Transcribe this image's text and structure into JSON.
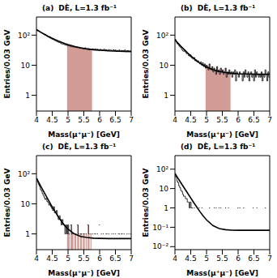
{
  "chart_data": [
    {
      "type": "histogram",
      "title": "(a)",
      "annotation": "DÈ, L=1.3 fb⁻¹",
      "x_label": "Mass(μ⁺μ⁻) [GeV]",
      "y_label": "Entries/0.03 GeV",
      "log": "y",
      "color": "#000000",
      "xlim": [
        4,
        7
      ],
      "xticks": [
        4,
        4.5,
        5,
        5.5,
        6,
        6.5,
        7
      ],
      "ylim": [
        0.3,
        400
      ],
      "yticks": [
        1,
        10,
        {
          "value": 100,
          "label": "10²"
        }
      ],
      "bins": [
        4,
        4.03,
        4.06,
        4.09,
        4.12,
        4.15,
        4.18,
        4.21,
        4.24,
        4.27,
        4.3,
        4.33,
        4.36,
        4.39,
        4.42,
        4.45,
        4.48,
        4.51,
        4.54,
        4.57,
        4.6,
        4.63,
        4.66,
        4.69,
        4.72,
        4.75,
        4.78,
        4.81,
        4.84,
        4.87,
        4.9,
        4.93,
        4.96,
        4.99,
        5.02,
        5.05,
        5.08,
        5.11,
        5.14,
        5.17,
        5.2,
        5.23,
        5.26,
        5.29,
        5.32,
        5.35,
        5.38,
        5.41,
        5.44,
        5.47,
        5.5,
        5.53,
        5.56,
        5.59,
        5.62,
        5.65,
        5.68,
        5.71,
        5.74,
        5.77,
        5.8,
        5.83,
        5.86,
        5.89,
        5.92,
        5.95,
        5.98,
        6.01,
        6.04,
        6.07,
        6.1,
        6.13,
        6.16,
        6.19,
        6.22,
        6.25,
        6.28,
        6.31,
        6.34,
        6.37,
        6.4,
        6.43,
        6.46,
        6.49,
        6.52,
        6.55,
        6.58,
        6.61,
        6.64,
        6.67,
        6.7,
        6.73,
        6.76,
        6.79,
        6.82,
        6.85,
        6.88,
        6.91,
        6.94,
        6.97,
        7
      ],
      "counts": [
        152,
        140,
        138,
        130,
        126,
        118,
        115,
        108,
        104,
        99,
        96,
        90,
        88,
        84,
        80,
        79,
        74,
        72,
        70,
        66,
        65,
        62,
        60,
        58,
        57,
        55,
        52,
        51,
        50,
        49,
        47,
        48,
        45,
        44,
        46,
        43,
        42,
        41,
        44,
        40,
        41,
        39,
        40,
        38,
        39,
        37,
        38,
        36,
        37,
        35,
        36,
        38,
        35,
        34,
        36,
        33,
        35,
        34,
        33,
        35,
        34,
        33,
        35,
        32,
        34,
        33,
        31,
        34,
        32,
        33,
        32,
        34,
        31,
        33,
        32,
        30,
        33,
        31,
        32,
        30,
        31,
        33,
        30,
        32,
        29,
        31,
        30,
        32,
        29,
        31,
        30,
        31,
        29,
        32,
        28,
        30,
        31,
        29,
        30,
        29
      ],
      "fit": {
        "x": [
          4,
          4.1,
          4.2,
          4.3,
          4.4,
          4.5,
          4.6,
          4.7,
          4.8,
          4.9,
          5,
          5.2,
          5.4,
          5.6,
          5.8,
          6,
          6.3,
          6.6,
          7
        ],
        "values": [
          153,
          132,
          115,
          100.5,
          88.4,
          78.4,
          70,
          63,
          57.2,
          52.3,
          48.3,
          42.1,
          37.8,
          34.8,
          32.7,
          31.3,
          29.9,
          29.1,
          28.5
        ]
      },
      "signal_window": [
        4.97,
        5.76
      ],
      "window_color": "#c98b84"
    },
    {
      "type": "histogram",
      "title": "(b)",
      "annotation": "DÈ, L=1.3 fb⁻¹",
      "x_label": "Mass(μ⁺μ⁻) [GeV]",
      "y_label": "Entries/0.03 GeV",
      "log": "y",
      "color": "#000000",
      "xlim": [
        4,
        7
      ],
      "xticks": [
        4,
        4.5,
        5,
        5.5,
        6,
        6.5,
        7
      ],
      "ylim": [
        0.3,
        400
      ],
      "yticks": [
        1,
        10,
        {
          "value": 100,
          "label": "10²"
        }
      ],
      "bins": [
        4,
        4.03,
        4.06,
        4.09,
        4.12,
        4.15,
        4.18,
        4.21,
        4.24,
        4.27,
        4.3,
        4.33,
        4.36,
        4.39,
        4.42,
        4.45,
        4.48,
        4.51,
        4.54,
        4.57,
        4.6,
        4.63,
        4.66,
        4.69,
        4.72,
        4.75,
        4.78,
        4.81,
        4.84,
        4.87,
        4.9,
        4.93,
        4.96,
        4.99,
        5.02,
        5.05,
        5.08,
        5.11,
        5.14,
        5.17,
        5.2,
        5.23,
        5.26,
        5.29,
        5.32,
        5.35,
        5.38,
        5.41,
        5.44,
        5.47,
        5.5,
        5.53,
        5.56,
        5.59,
        5.62,
        5.65,
        5.68,
        5.71,
        5.74,
        5.77,
        5.8,
        5.83,
        5.86,
        5.89,
        5.92,
        5.95,
        5.98,
        6.01,
        6.04,
        6.07,
        6.1,
        6.13,
        6.16,
        6.19,
        6.22,
        6.25,
        6.28,
        6.31,
        6.34,
        6.37,
        6.4,
        6.43,
        6.46,
        6.49,
        6.52,
        6.55,
        6.58,
        6.61,
        6.64,
        6.67,
        6.7,
        6.73,
        6.76,
        6.79,
        6.82,
        6.85,
        6.88,
        6.91,
        6.94,
        6.97,
        7
      ],
      "counts": [
        72,
        60,
        52,
        50,
        44,
        40,
        38,
        33,
        30,
        29,
        31,
        27,
        24,
        25,
        21,
        20,
        22,
        18,
        17,
        16,
        18,
        14,
        15,
        13,
        14,
        12,
        11,
        13,
        10,
        12,
        9,
        11,
        8,
        10,
        9,
        7,
        11,
        8,
        7,
        9,
        6,
        8,
        7,
        5,
        9,
        6,
        7,
        5,
        8,
        6,
        7,
        5,
        6,
        8,
        4,
        6,
        5,
        7,
        5,
        6,
        4,
        6,
        5,
        7,
        3,
        6,
        5,
        4,
        6,
        5,
        5,
        3,
        6,
        4,
        7,
        5,
        4,
        6,
        3,
        5,
        6,
        4,
        5,
        3,
        7,
        4,
        6,
        5,
        4,
        5,
        4,
        6,
        3,
        5,
        4,
        7,
        5,
        3,
        6,
        4
      ],
      "fit": {
        "x": [
          4,
          4.1,
          4.2,
          4.3,
          4.4,
          4.5,
          4.6,
          4.7,
          4.8,
          4.9,
          5,
          5.2,
          5.4,
          5.6,
          5.8,
          6,
          6.3,
          6.6,
          7
        ],
        "values": [
          70,
          53.8,
          41.7,
          32.6,
          25.7,
          20.6,
          16.7,
          13.8,
          11.6,
          10,
          8.7,
          7.1,
          6.2,
          5.7,
          5.4,
          5.2,
          5.1,
          5,
          5
        ]
      },
      "signal_window": [
        4.97,
        5.76
      ],
      "window_color": "#c98b84"
    },
    {
      "type": "histogram",
      "title": "(c)",
      "annotation": "DÈ, L=1.3 fb⁻¹",
      "x_label": "Mass(μ⁺μ⁻) [GeV]",
      "y_label": "Entries/0.03 GeV",
      "log": "y",
      "color": "#000000",
      "xlim": [
        4,
        7
      ],
      "xticks": [
        4,
        4.5,
        5,
        5.5,
        6,
        6.5,
        7
      ],
      "ylim": [
        0.3,
        400
      ],
      "yticks": [
        1,
        10,
        {
          "value": 100,
          "label": "10²"
        }
      ],
      "bins": [
        4,
        4.03,
        4.06,
        4.09,
        4.12,
        4.15,
        4.18,
        4.21,
        4.24,
        4.27,
        4.3,
        4.33,
        4.36,
        4.39,
        4.42,
        4.45,
        4.48,
        4.51,
        4.54,
        4.57,
        4.6,
        4.63,
        4.66,
        4.69,
        4.72,
        4.75,
        4.78,
        4.81,
        4.84,
        4.87,
        4.9,
        4.93,
        4.96,
        4.99,
        5.02,
        5.05,
        5.08,
        5.11,
        5.14,
        5.17,
        5.2,
        5.23,
        5.26,
        5.29,
        5.32,
        5.35,
        5.38,
        5.41,
        5.44,
        5.47,
        5.5,
        5.53,
        5.56,
        5.59,
        5.62,
        5.65,
        5.68,
        5.71,
        5.74,
        5.77,
        5.8,
        5.83,
        5.86,
        5.89,
        5.92,
        5.95,
        5.98,
        6.01,
        6.04,
        6.07,
        6.1,
        6.13,
        6.16,
        6.19,
        6.22,
        6.25,
        6.28,
        6.31,
        6.34,
        6.37,
        6.4,
        6.43,
        6.46,
        6.49,
        6.52,
        6.55,
        6.58,
        6.61,
        6.64,
        6.67,
        6.7,
        6.73,
        6.76,
        6.79,
        6.82,
        6.85,
        6.88,
        6.91,
        6.94,
        6.97,
        7
      ],
      "counts": [
        68,
        52,
        44,
        38,
        30,
        27,
        22,
        19,
        16,
        14,
        15,
        12,
        11,
        9,
        10,
        8,
        7,
        6,
        8,
        5,
        5,
        6,
        4,
        3,
        4,
        3,
        2,
        3,
        2,
        2,
        1,
        2,
        1,
        2,
        1,
        0,
        2,
        1,
        1,
        0,
        1,
        1,
        0,
        2,
        1,
        0,
        1,
        1,
        0,
        1,
        1,
        0,
        1,
        0,
        2,
        1,
        0,
        1,
        0,
        1,
        0,
        1,
        1,
        0,
        1,
        0,
        2,
        0,
        1,
        0,
        1,
        0,
        0,
        1,
        1,
        0,
        1,
        0,
        0,
        1,
        0,
        1,
        0,
        1,
        0,
        0,
        1,
        1,
        0,
        1,
        1,
        0,
        1,
        0,
        0,
        1,
        0,
        1,
        0,
        1
      ],
      "fit": {
        "x": [
          4,
          4.1,
          4.2,
          4.3,
          4.4,
          4.5,
          4.6,
          4.7,
          4.8,
          4.9,
          5,
          5.2,
          5.4,
          5.6,
          5.8,
          6,
          6.3,
          6.6,
          7
        ],
        "values": [
          70.7,
          45.1,
          28.9,
          18.6,
          12.1,
          7.9,
          5.3,
          3.6,
          2.55,
          1.87,
          1.44,
          1,
          0.82,
          0.76,
          0.72,
          0.71,
          0.7,
          0.7,
          0.7
        ]
      },
      "signal_window": [
        4.97,
        5.76
      ],
      "window_color": "#c98b84"
    },
    {
      "type": "histogram",
      "title": "(d)",
      "annotation": "DÈ, L=1.3 fb⁻¹",
      "x_label": "Mass(μ⁺μ⁻) [GeV]",
      "y_label": "Entries/0.03 GeV",
      "log": "y",
      "color": "#000000",
      "xlim": [
        4,
        7
      ],
      "xticks": [
        4,
        4.5,
        5,
        5.5,
        6,
        6.5,
        7
      ],
      "ylim": [
        0.007,
        500
      ],
      "yticks": [
        {
          "value": 0.01,
          "label": "10⁻²"
        },
        {
          "value": 0.1,
          "label": "10⁻¹"
        },
        1,
        10,
        {
          "value": 100,
          "label": "10²"
        }
      ],
      "bins": [
        4,
        4.03,
        4.06,
        4.09,
        4.12,
        4.15,
        4.18,
        4.21,
        4.24,
        4.27,
        4.3,
        4.33,
        4.36,
        4.39,
        4.42,
        4.45,
        4.48,
        4.51,
        4.54,
        4.57,
        4.6,
        4.63,
        4.66,
        4.69,
        4.72,
        4.75,
        4.78,
        4.81,
        4.84,
        4.87,
        4.9,
        4.93,
        4.96,
        4.99,
        5.02,
        5.05,
        5.08,
        5.11,
        5.14,
        5.17,
        5.2,
        5.23,
        5.26,
        5.29,
        5.32,
        5.35,
        5.38,
        5.41,
        5.44,
        5.47,
        5.5,
        5.53,
        5.56,
        5.59,
        5.62,
        5.65,
        5.68,
        5.71,
        5.74,
        5.77,
        5.8,
        5.83,
        5.86,
        5.89,
        5.92,
        5.95,
        5.98,
        6.01,
        6.04,
        6.07,
        6.1,
        6.13,
        6.16,
        6.19,
        6.22,
        6.25,
        6.28,
        6.31,
        6.34,
        6.37,
        6.4,
        6.43,
        6.46,
        6.49,
        6.52,
        6.55,
        6.58,
        6.61,
        6.64,
        6.67,
        6.7,
        6.73,
        6.76,
        6.79,
        6.82,
        6.85,
        6.88,
        6.91,
        6.94,
        6.97,
        7
      ],
      "counts": [
        45,
        38,
        24,
        20,
        14,
        11,
        8,
        7,
        5,
        4,
        4,
        3,
        3,
        2,
        2,
        1,
        2,
        1,
        1,
        0,
        1,
        0,
        0,
        1,
        0,
        1,
        0,
        0,
        1,
        0,
        0,
        0,
        0,
        0,
        0,
        0,
        1,
        0,
        0,
        0,
        0,
        1,
        0,
        1,
        0,
        0,
        1,
        0,
        1,
        0,
        0,
        0,
        0,
        1,
        0,
        0,
        1,
        0,
        0,
        0,
        0,
        0,
        0,
        0,
        0,
        0,
        1,
        0,
        1,
        0,
        0,
        0,
        1,
        0,
        0,
        0,
        0,
        0,
        0,
        0,
        0,
        0,
        1,
        0,
        0,
        0,
        1,
        0,
        0,
        0,
        0,
        0,
        0,
        0,
        0,
        1,
        0,
        0,
        0,
        0
      ],
      "fit": {
        "x": [
          4,
          4.1,
          4.2,
          4.3,
          4.4,
          4.5,
          4.6,
          4.7,
          4.8,
          4.9,
          5,
          5.2,
          5.4,
          5.6,
          5.8,
          6,
          6.3,
          6.6,
          7
        ],
        "values": [
          60.07,
          33.4,
          18.5,
          10.3,
          5.78,
          3.24,
          1.83,
          1.05,
          0.61,
          0.37,
          0.24,
          0.122,
          0.086,
          0.075,
          0.071,
          0.07,
          0.07,
          0.07,
          0.07
        ]
      }
    }
  ]
}
